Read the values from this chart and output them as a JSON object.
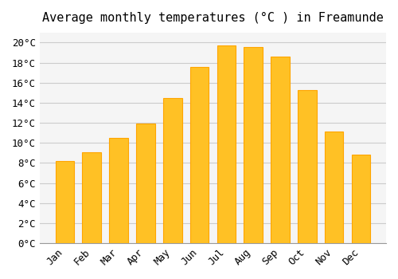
{
  "title": "Average monthly temperatures (°C ) in Freamunde",
  "months": [
    "Jan",
    "Feb",
    "Mar",
    "Apr",
    "May",
    "Jun",
    "Jul",
    "Aug",
    "Sep",
    "Oct",
    "Nov",
    "Dec"
  ],
  "temperatures": [
    8.2,
    9.1,
    10.5,
    11.9,
    14.5,
    17.6,
    19.7,
    19.6,
    18.6,
    15.3,
    11.1,
    8.8
  ],
  "bar_color": "#FFC125",
  "bar_edge_color": "#FFA500",
  "background_color": "#ffffff",
  "plot_bg_color": "#f5f5f5",
  "grid_color": "#cccccc",
  "ylim": [
    0,
    21
  ],
  "yticks": [
    0,
    2,
    4,
    6,
    8,
    10,
    12,
    14,
    16,
    18,
    20
  ],
  "title_fontsize": 11,
  "tick_fontsize": 9,
  "font_family": "monospace"
}
